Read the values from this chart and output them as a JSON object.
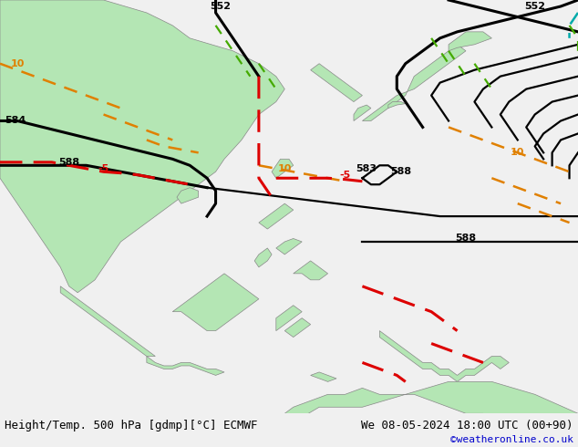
{
  "title_left": "Height/Temp. 500 hPa [gdmp][°C] ECMWF",
  "title_right": "We 08-05-2024 18:00 UTC (00+90)",
  "credit": "©weatheronline.co.uk",
  "credit_color": "#0000cc",
  "bg_color": "#c8c8c8",
  "land_color": "#b4e6b4",
  "land_edge": "#888888",
  "water_color": "#c8c8c8",
  "bottom_bar_color": "#f0f0f0",
  "title_fontsize": 9,
  "credit_fontsize": 8,
  "fig_width": 6.34,
  "fig_height": 4.9,
  "dpi": 100,
  "map_extent": [
    88,
    155,
    -15,
    50
  ],
  "contour_lw": 1.6,
  "contour_thick_lw": 2.2
}
